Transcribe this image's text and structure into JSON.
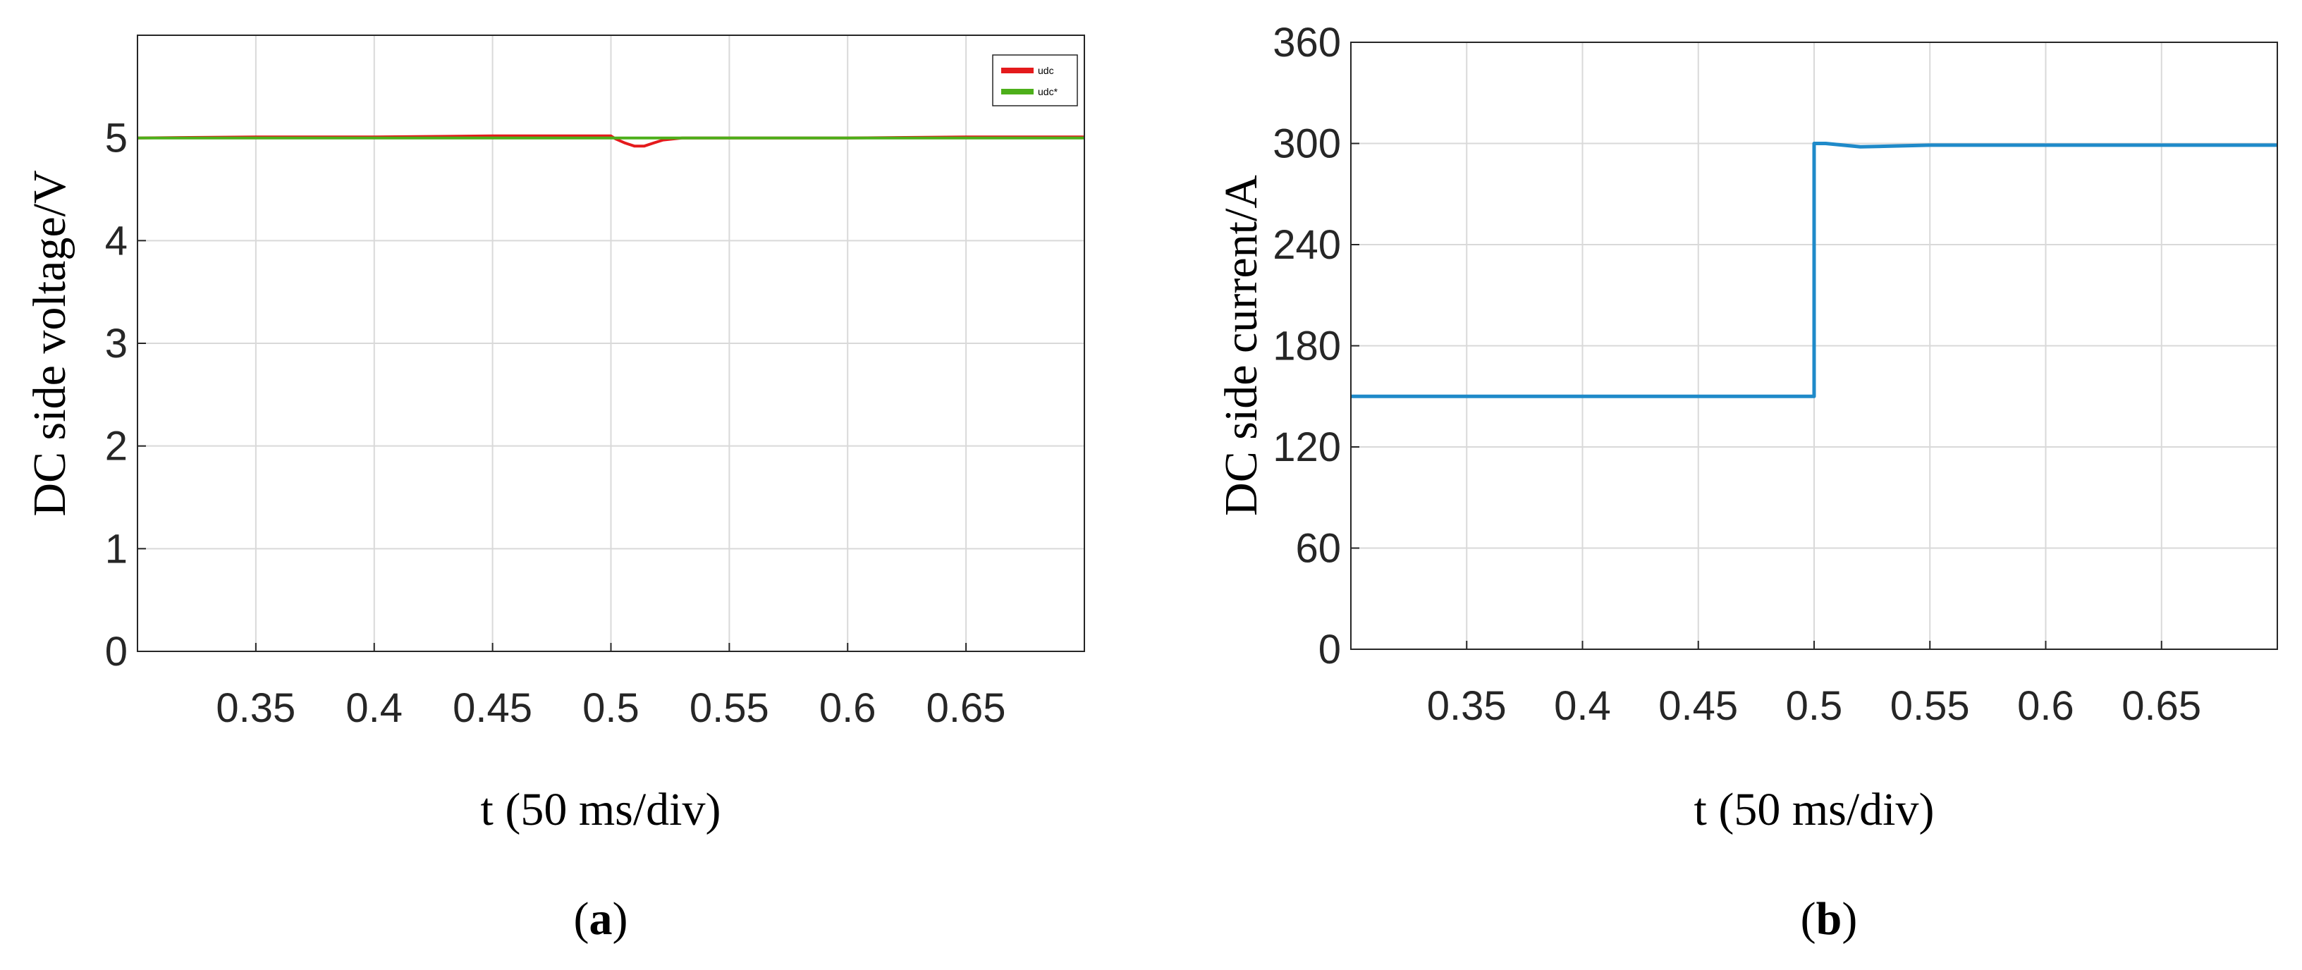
{
  "figure": {
    "caption_a": "(a)",
    "caption_b": "(b)",
    "caption_a_letter": "a",
    "caption_b_letter": "b"
  },
  "chart_data": [
    {
      "type": "line",
      "panel": "a",
      "xlabel": "t (50 ms/div)",
      "ylabel": "DC side voltage/V",
      "xlim": [
        0.3,
        0.7
      ],
      "ylim": [
        0,
        6
      ],
      "xticks": [
        0.35,
        0.4,
        0.45,
        0.5,
        0.55,
        0.6,
        0.65
      ],
      "xtick_labels": [
        "0.35",
        "0.4",
        "0.45",
        "0.5",
        "0.55",
        "0.6",
        "0.65"
      ],
      "yticks": [
        0,
        1,
        2,
        3,
        4,
        5
      ],
      "ytick_labels": [
        "0",
        "1",
        "2",
        "3",
        "4",
        "5"
      ],
      "grid": true,
      "legend_position": "top-right",
      "series": [
        {
          "name": "udc",
          "color": "#e41a1c",
          "x": [
            0.3,
            0.35,
            0.4,
            0.45,
            0.5,
            0.502,
            0.506,
            0.51,
            0.514,
            0.518,
            0.522,
            0.53,
            0.55,
            0.6,
            0.65,
            0.7
          ],
          "y": [
            5.0,
            5.01,
            5.01,
            5.02,
            5.02,
            4.99,
            4.95,
            4.92,
            4.92,
            4.95,
            4.98,
            5.0,
            5.0,
            5.0,
            5.01,
            5.01
          ]
        },
        {
          "name": "udc*",
          "color": "#4daf1a",
          "x": [
            0.3,
            0.7
          ],
          "y": [
            5.0,
            5.0
          ]
        }
      ]
    },
    {
      "type": "line",
      "panel": "b",
      "xlabel": "t (50 ms/div)",
      "ylabel": "DC side current/A",
      "xlim": [
        0.3,
        0.7
      ],
      "ylim": [
        0,
        360
      ],
      "xticks": [
        0.35,
        0.4,
        0.45,
        0.5,
        0.55,
        0.6,
        0.65
      ],
      "xtick_labels": [
        "0.35",
        "0.4",
        "0.45",
        "0.5",
        "0.55",
        "0.6",
        "0.65"
      ],
      "yticks": [
        0,
        60,
        120,
        180,
        240,
        300,
        360
      ],
      "ytick_labels": [
        "0",
        "60",
        "120",
        "180",
        "240",
        "300",
        "360"
      ],
      "grid": true,
      "series": [
        {
          "color": "#1f8ac9",
          "x": [
            0.3,
            0.5,
            0.5,
            0.505,
            0.52,
            0.55,
            0.6,
            0.65,
            0.7
          ],
          "y": [
            150,
            150,
            300,
            300,
            298,
            299,
            299,
            299,
            299
          ]
        }
      ]
    }
  ]
}
